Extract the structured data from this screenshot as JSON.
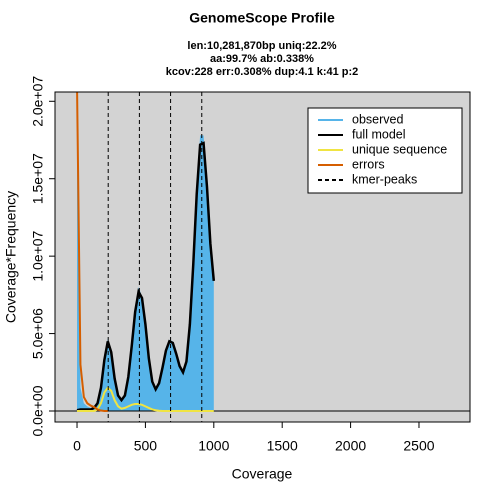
{
  "chart_data": {
    "type": "line",
    "title": "GenomeScope Profile",
    "subtitle": [
      "len:10,281,870bp uniq:22.2%",
      "aa:99.7% ab:0.338%",
      "kcov:228 err:0.308%  dup:4.1  k:41 p:2"
    ],
    "xlabel": "Coverage",
    "ylabel": "Coverage*Frequency",
    "xlim": [
      -161,
      2873
    ],
    "ylim": [
      -710000,
      20600000
    ],
    "xticks": [
      0,
      500,
      1000,
      1500,
      2000,
      2500
    ],
    "yticks": [
      {
        "value": 0,
        "label": "0.0e+00"
      },
      {
        "value": 5000000,
        "label": "5.0e+06"
      },
      {
        "value": 10000000,
        "label": "1.0e+07"
      },
      {
        "value": 15000000,
        "label": "1.5e+07"
      },
      {
        "value": 20000000,
        "label": "2.0e+07"
      }
    ],
    "background": "#d3d3d3",
    "legend": "top-right",
    "x": [
      0,
      25,
      50,
      75,
      100,
      125,
      150,
      175,
      200,
      225,
      250,
      275,
      300,
      325,
      350,
      375,
      400,
      425,
      450,
      475,
      500,
      525,
      550,
      575,
      600,
      625,
      650,
      675,
      700,
      725,
      750,
      775,
      800,
      825,
      850,
      875,
      900,
      925,
      950,
      975,
      1000
    ],
    "series": [
      {
        "name": "observed",
        "color": "#56b4e9",
        "style": "area",
        "values": [
          21000000,
          1500000,
          500000,
          300000,
          200000,
          250000,
          500000,
          1500000,
          3300000,
          4700000,
          3800000,
          2100000,
          1000000,
          700000,
          1000000,
          2200000,
          4200000,
          6500000,
          8000000,
          7400000,
          5700000,
          3400000,
          1900000,
          1400000,
          1800000,
          2800000,
          3900000,
          4600000,
          4500000,
          3700000,
          2900000,
          2500000,
          3200000,
          5700000,
          9600000,
          14200000,
          17800000,
          17800000,
          14700000,
          10900000,
          8400000
        ]
      },
      {
        "name": "full model",
        "color": "#000000",
        "style": "line",
        "width": 2.5,
        "values": [
          50000,
          100000,
          100000,
          100000,
          100000,
          200000,
          500000,
          1500000,
          3300000,
          4500000,
          3800000,
          2100000,
          1000000,
          700000,
          1000000,
          2200000,
          4200000,
          6400000,
          7700000,
          7300000,
          5600000,
          3400000,
          1900000,
          1400000,
          1800000,
          2800000,
          3900000,
          4500000,
          4400000,
          3700000,
          2900000,
          2500000,
          3200000,
          5600000,
          9500000,
          14000000,
          17200000,
          17300000,
          14500000,
          10800000,
          8400000
        ]
      },
      {
        "name": "unique sequence",
        "color": "#f0e442",
        "style": "line",
        "width": 2,
        "values": [
          0,
          0,
          0,
          0,
          0,
          0,
          100000,
          500000,
          1200000,
          1500000,
          1300000,
          700000,
          300000,
          150000,
          200000,
          300000,
          400000,
          450000,
          450000,
          400000,
          300000,
          200000,
          100000,
          50000,
          20000,
          0,
          0,
          0,
          0,
          0,
          0,
          0,
          0,
          0,
          0,
          0,
          0,
          0,
          0,
          0,
          0
        ]
      },
      {
        "name": "errors",
        "color": "#d55e00",
        "style": "line",
        "width": 2,
        "values": [
          21000000,
          3000000,
          900000,
          500000,
          350000,
          250000,
          100000,
          30000,
          0,
          0,
          null,
          null,
          null,
          null,
          null,
          null,
          null,
          null,
          null,
          null,
          null,
          null,
          null,
          null,
          null,
          null,
          null,
          null,
          null,
          null,
          null,
          null,
          null,
          null,
          null,
          null,
          null,
          null,
          null,
          null,
          null
        ]
      }
    ],
    "vlines": {
      "name": "kmer-peaks",
      "color": "#000000",
      "x": [
        228,
        456,
        684,
        912
      ]
    }
  }
}
